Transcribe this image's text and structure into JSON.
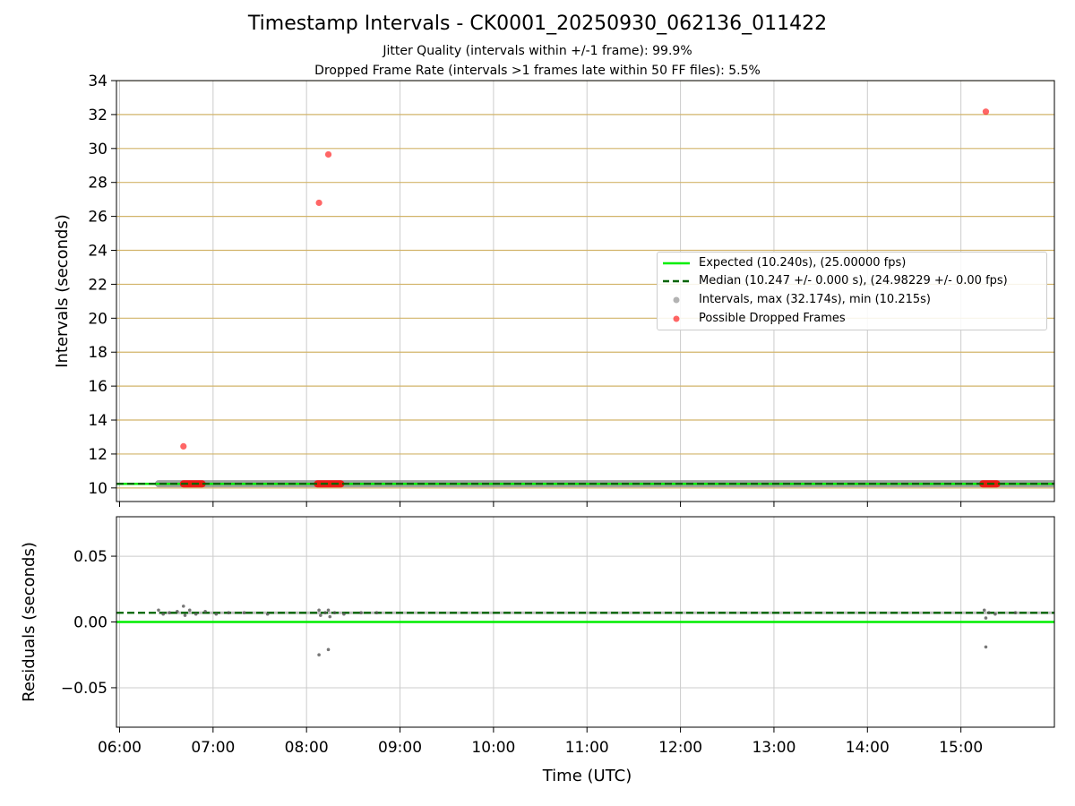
{
  "header": {
    "title": "Timestamp Intervals - CK0001_20250930_062136_011422",
    "subtitle1": "Jitter Quality (intervals within +/-1 frame): 99.9%",
    "subtitle2": "Dropped Frame Rate (intervals >1 frames late within 50 FF files): 5.5%"
  },
  "colors": {
    "expected": "#00ee00",
    "median": "#006400",
    "intervals": "#808080",
    "dropped": "#ff0000",
    "grid_top_h": "#d2b46a",
    "grid": "#cccccc"
  },
  "chart_data": [
    {
      "type": "scatter",
      "panel": "top",
      "ylabel": "Intervals (seconds)",
      "xlabel": "",
      "ylim": [
        9.2,
        34
      ],
      "xlim": [
        "05:58",
        "16:00"
      ],
      "yticks": [
        "10",
        "12",
        "14",
        "16",
        "18",
        "20",
        "22",
        "24",
        "26",
        "28",
        "30",
        "32",
        "34"
      ],
      "grid": true,
      "legend_position": "center-right",
      "legend": [
        "Expected (10.240s), (25.00000 fps)",
        "Median (10.247 +/- 0.000 s), (24.98229 +/- 0.00 fps)",
        "Intervals, max (32.174s), min (10.215s)",
        "Possible Dropped Frames"
      ],
      "series": [
        {
          "name": "Expected (10.240s), (25.00000 fps)",
          "kind": "hline",
          "y": 10.24
        },
        {
          "name": "Median (10.247 +/- 0.000 s), (24.98229 +/- 0.00 fps)",
          "kind": "hline-dashed",
          "y": 10.247
        },
        {
          "name": "Intervals, max (32.174s), min (10.215s)",
          "kind": "band",
          "x_start": "06:25",
          "x_end": "16:00",
          "y": 10.247
        },
        {
          "name": "Possible Dropped Frames",
          "kind": "points",
          "points": [
            {
              "x": "06:41",
              "y": 12.45
            },
            {
              "x": "08:08",
              "y": 26.8
            },
            {
              "x": "08:14",
              "y": 29.65
            },
            {
              "x": "15:16",
              "y": 32.17
            }
          ],
          "clusters": [
            {
              "x_start": "06:41",
              "x_end": "06:53",
              "y": 10.24
            },
            {
              "x_start": "08:07",
              "x_end": "08:22",
              "y": 10.24
            },
            {
              "x_start": "15:14",
              "x_end": "15:23",
              "y": 10.24
            }
          ]
        }
      ]
    },
    {
      "type": "scatter",
      "panel": "bottom",
      "ylabel": "Residuals (seconds)",
      "xlabel": "Time (UTC)",
      "ylim": [
        -0.08,
        0.08
      ],
      "xlim": [
        "05:58",
        "16:00"
      ],
      "yticks": [
        "−0.05",
        "0.00",
        "0.05"
      ],
      "xticks": [
        "06:00",
        "07:00",
        "08:00",
        "09:00",
        "10:00",
        "11:00",
        "12:00",
        "13:00",
        "14:00",
        "15:00"
      ],
      "grid": true,
      "series": [
        {
          "name": "Expected",
          "kind": "hline",
          "y": 0.0
        },
        {
          "name": "Median",
          "kind": "hline-dashed",
          "y": 0.007
        },
        {
          "name": "Residuals",
          "kind": "points",
          "points": [
            {
              "x": "06:25",
              "y": 0.009
            },
            {
              "x": "06:28",
              "y": 0.006
            },
            {
              "x": "06:32",
              "y": 0.007
            },
            {
              "x": "06:37",
              "y": 0.008
            },
            {
              "x": "06:41",
              "y": 0.012
            },
            {
              "x": "06:42",
              "y": 0.005
            },
            {
              "x": "06:45",
              "y": 0.009
            },
            {
              "x": "06:49",
              "y": 0.006
            },
            {
              "x": "06:55",
              "y": 0.008
            },
            {
              "x": "07:02",
              "y": 0.006
            },
            {
              "x": "07:10",
              "y": 0.007
            },
            {
              "x": "07:20",
              "y": 0.007
            },
            {
              "x": "07:35",
              "y": 0.006
            },
            {
              "x": "08:08",
              "y": -0.025
            },
            {
              "x": "08:08",
              "y": 0.009
            },
            {
              "x": "08:09",
              "y": 0.005
            },
            {
              "x": "08:12",
              "y": 0.007
            },
            {
              "x": "08:14",
              "y": -0.021
            },
            {
              "x": "08:14",
              "y": 0.009
            },
            {
              "x": "08:15",
              "y": 0.004
            },
            {
              "x": "08:18",
              "y": 0.007
            },
            {
              "x": "08:24",
              "y": 0.006
            },
            {
              "x": "08:35",
              "y": 0.007
            },
            {
              "x": "08:45",
              "y": 0.007
            },
            {
              "x": "15:15",
              "y": 0.009
            },
            {
              "x": "15:16",
              "y": 0.003
            },
            {
              "x": "15:16",
              "y": -0.019
            },
            {
              "x": "15:18",
              "y": 0.007
            },
            {
              "x": "15:22",
              "y": 0.006
            },
            {
              "x": "15:35",
              "y": 0.007
            }
          ]
        }
      ]
    }
  ]
}
